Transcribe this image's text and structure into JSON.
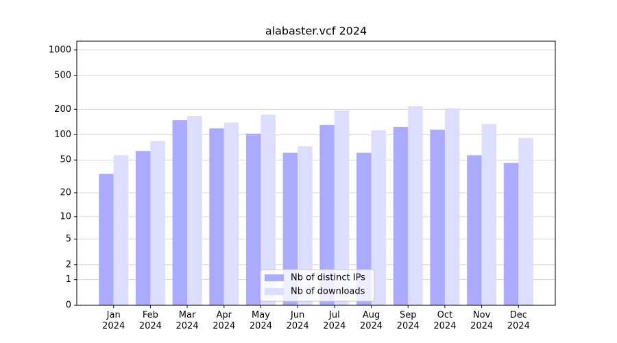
{
  "chart_data": {
    "type": "bar",
    "title": "alabaster.vcf 2024",
    "categories": [
      "Jan\n2024",
      "Feb\n2024",
      "Mar\n2024",
      "Apr\n2024",
      "May\n2024",
      "Jun\n2024",
      "Jul\n2024",
      "Aug\n2024",
      "Sep\n2024",
      "Oct\n2024",
      "Nov\n2024",
      "Dec\n2024"
    ],
    "series": [
      {
        "name": "Nb of distinct IPs",
        "color": "#aaaaff",
        "values": [
          34,
          64,
          149,
          119,
          103,
          61,
          131,
          61,
          124,
          115,
          57,
          46
        ]
      },
      {
        "name": "Nb of downloads",
        "color": "#ddddff",
        "values": [
          57,
          84,
          167,
          139,
          173,
          73,
          194,
          113,
          217,
          205,
          134,
          92
        ]
      }
    ],
    "yscale": "log1p",
    "ylim": [
      0,
      1270
    ],
    "yticks": [
      0,
      1,
      2,
      5,
      10,
      20,
      50,
      100,
      200,
      500,
      1000
    ],
    "grid": true,
    "legend": "lower center"
  }
}
